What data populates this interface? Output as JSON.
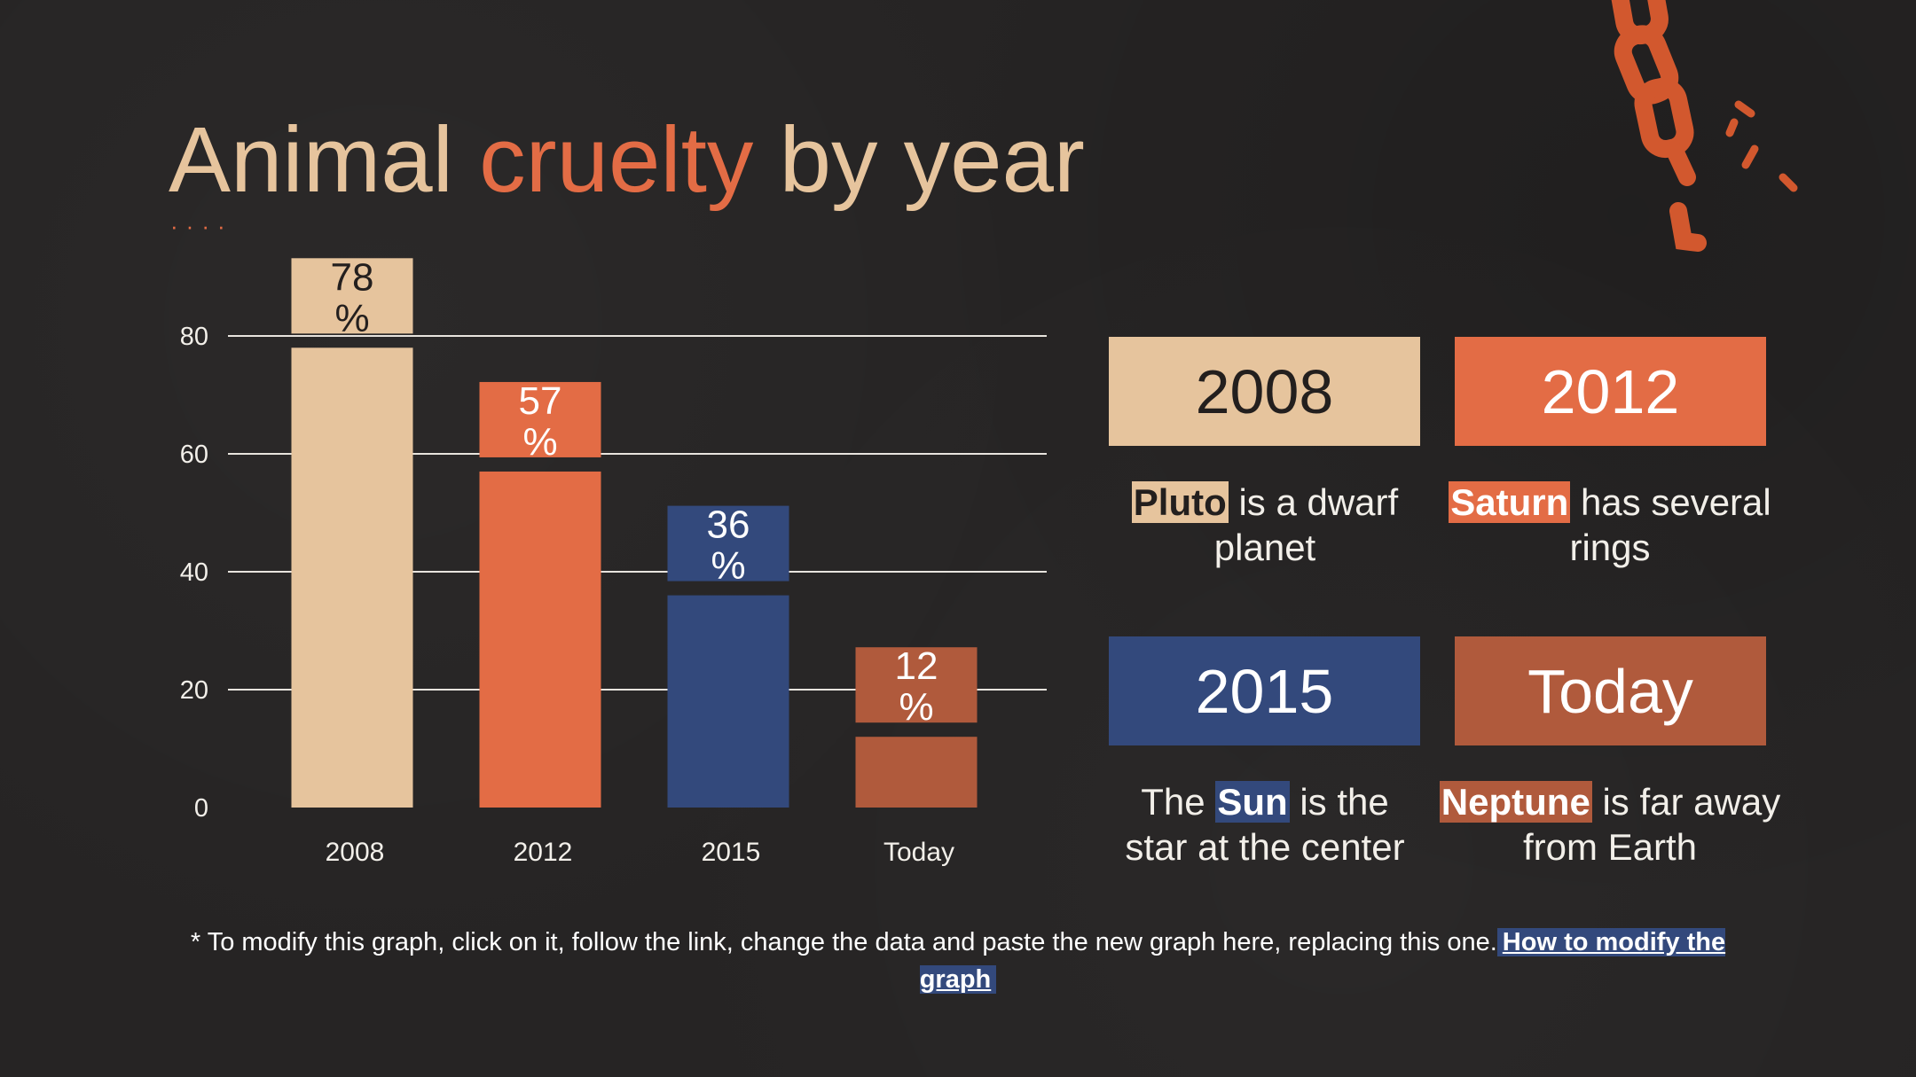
{
  "title": {
    "part1": "Animal ",
    "accent": "cruelty",
    "part2": " by year",
    "dots": "····"
  },
  "colors": {
    "background": "#262424",
    "beige": "#e6c49d",
    "orange": "#e36c45",
    "blue": "#33497c",
    "rust": "#b05a3c",
    "text_light": "#f2efe9",
    "text_dark": "#231f1e"
  },
  "chart_data": {
    "type": "bar",
    "categories": [
      "2008",
      "2012",
      "2015",
      "Today"
    ],
    "values": [
      78,
      57,
      36,
      12
    ],
    "data_labels": [
      "78\n%",
      "57\n%",
      "36\n%",
      "12\n%"
    ],
    "bar_colors": [
      "#e6c49d",
      "#e36c45",
      "#33497c",
      "#b05a3c"
    ],
    "label_text_colors": [
      "#231f1e",
      "#ffffff",
      "#ffffff",
      "#ffffff"
    ],
    "y_ticks": [
      0,
      20,
      40,
      60,
      80
    ],
    "ylim": [
      0,
      80
    ],
    "grid": true,
    "legend": "none"
  },
  "cards": [
    {
      "year": "2008",
      "bg": "#e6c49d",
      "fg": "#231f1e",
      "highlight": "Pluto",
      "hl_bg": "#e6c49d",
      "hl_fg": "#231f1e",
      "before": "",
      "after": " is a dwarf planet"
    },
    {
      "year": "2012",
      "bg": "#e36c45",
      "fg": "#ffffff",
      "highlight": "Saturn",
      "hl_bg": "#e36c45",
      "hl_fg": "#ffffff",
      "before": "",
      "after": " has several rings"
    },
    {
      "year": "2015",
      "bg": "#33497c",
      "fg": "#ffffff",
      "highlight": "Sun",
      "hl_bg": "#33497c",
      "hl_fg": "#ffffff",
      "before": "The ",
      "after": " is the star at the center"
    },
    {
      "year": "Today",
      "bg": "#b05a3c",
      "fg": "#ffffff",
      "highlight": "Neptune",
      "hl_bg": "#b05a3c",
      "hl_fg": "#ffffff",
      "before": "",
      "after": " is far away from Earth"
    }
  ],
  "footnote": {
    "text": "* To modify this graph, click on it, follow the link, change the data and paste the new graph here, replacing this one.",
    "link_text": "How to modify the graph"
  }
}
